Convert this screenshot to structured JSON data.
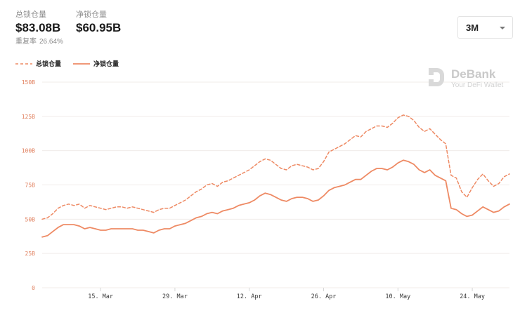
{
  "header": {
    "total": {
      "label": "总锁仓量",
      "value": "$83.08B"
    },
    "net": {
      "label": "净锁仓量",
      "value": "$60.95B"
    },
    "repeat_rate": {
      "label": "重复率",
      "value": "26.64%"
    }
  },
  "range_select": {
    "value": "3M"
  },
  "legend": {
    "total_label": "总锁仓量",
    "net_label": "净锁仓量"
  },
  "brand": {
    "name": "DeBank",
    "tagline": "Your DeFi Wallet"
  },
  "colors": {
    "line": "#ee8a64",
    "grid": "#f0ece9",
    "tick": "#e07f5d",
    "brand": "#c9c9c9"
  },
  "chart_data": {
    "type": "line",
    "y_ticks": [
      "150B",
      "125B",
      "100B",
      "75B",
      "50B",
      "25B",
      "0"
    ],
    "ylim": [
      0,
      150
    ],
    "x": [
      0,
      1,
      2,
      3,
      4,
      5,
      6,
      7,
      8,
      9,
      10,
      11,
      12,
      13,
      14,
      15,
      16,
      17,
      18,
      19,
      20,
      21,
      22,
      23,
      24,
      25,
      26,
      27,
      28,
      29,
      30,
      31,
      32,
      33,
      34,
      35,
      36,
      37,
      38,
      39,
      40,
      41,
      42,
      43,
      44,
      45,
      46,
      47,
      48,
      49,
      50,
      51,
      52,
      53,
      54,
      55,
      56,
      57,
      58,
      59,
      60,
      61,
      62,
      63,
      64,
      65,
      66,
      67,
      68,
      69,
      70,
      71,
      72,
      73,
      74,
      75,
      76,
      77,
      78,
      79,
      80,
      81,
      82,
      83,
      84,
      85,
      86,
      87,
      88
    ],
    "xlim": [
      0,
      88
    ],
    "x_ticks": [
      {
        "label": "15. Mar",
        "x": 11
      },
      {
        "label": "29. Mar",
        "x": 25
      },
      {
        "label": "12. Apr",
        "x": 39
      },
      {
        "label": "26. Apr",
        "x": 53
      },
      {
        "label": "10. May",
        "x": 67
      },
      {
        "label": "24. May",
        "x": 81
      }
    ],
    "series": [
      {
        "name": "总锁仓量",
        "style": "dashed",
        "values": [
          50,
          51,
          54,
          58,
          60,
          61,
          60,
          61,
          58,
          60,
          59,
          58,
          57,
          58,
          59,
          59,
          58,
          59,
          58,
          57,
          56,
          55,
          57,
          58,
          58,
          60,
          62,
          64,
          67,
          70,
          72,
          75,
          76,
          74,
          77,
          78,
          80,
          82,
          84,
          86,
          89,
          92,
          94,
          93,
          90,
          87,
          86,
          89,
          90,
          89,
          88,
          86,
          87,
          92,
          99,
          101,
          103,
          105,
          108,
          111,
          110,
          114,
          116,
          118,
          118,
          117,
          120,
          124,
          126,
          125,
          122,
          117,
          114,
          116,
          112,
          108,
          105,
          82,
          80,
          70,
          66,
          73,
          79,
          83,
          78,
          74,
          76,
          81,
          83
        ]
      },
      {
        "name": "净锁仓量",
        "style": "solid",
        "values": [
          37,
          38,
          41,
          44,
          46,
          46,
          46,
          45,
          43,
          44,
          43,
          42,
          42,
          43,
          43,
          43,
          43,
          43,
          42,
          42,
          41,
          40,
          42,
          43,
          43,
          45,
          46,
          47,
          49,
          51,
          52,
          54,
          55,
          54,
          56,
          57,
          58,
          60,
          61,
          62,
          64,
          67,
          69,
          68,
          66,
          64,
          63,
          65,
          66,
          66,
          65,
          63,
          64,
          67,
          71,
          73,
          74,
          75,
          77,
          79,
          79,
          82,
          85,
          87,
          87,
          86,
          88,
          91,
          93,
          92,
          90,
          86,
          84,
          86,
          82,
          80,
          78,
          58,
          57,
          54,
          52,
          53,
          56,
          59,
          57,
          55,
          56,
          59,
          61
        ]
      }
    ]
  }
}
